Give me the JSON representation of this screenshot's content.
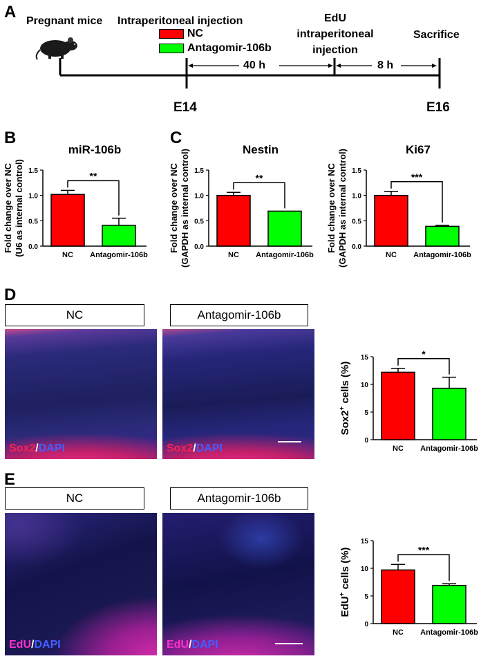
{
  "panels": {
    "A": "A",
    "B": "B",
    "C": "C",
    "D": "D",
    "E": "E"
  },
  "timeline": {
    "pregnant": "Pregnant mice",
    "injection": "Intraperitoneal injection",
    "legend_nc": "NC",
    "legend_anta": "Antagomir-106b",
    "edu_line1": "EdU",
    "edu_line2": "intraperitoneal",
    "edu_line3": "injection",
    "sacrifice": "Sacrifice",
    "interval1": "40 h",
    "interval2": "8 h",
    "day1": "E14",
    "day2": "E16",
    "colors": {
      "nc": "#ff0000",
      "anta": "#00ff00"
    }
  },
  "images": {
    "d_nc_label": "NC",
    "d_anta_label": "Antagomir-106b",
    "e_nc_label": "NC",
    "e_anta_label": "Antagomir-106b",
    "d_stain_a": "Sox2",
    "d_stain_b": "DAPI",
    "e_stain_a": "EdU",
    "e_stain_b": "DAPI",
    "slash": "/"
  },
  "chart_data": [
    {
      "id": "mir106b",
      "type": "bar",
      "title": "miR-106b",
      "ylabel_line1": "Fold change over NC",
      "ylabel_line2": "(U6 as internal control)",
      "categories": [
        "NC",
        "Antagomir-106b"
      ],
      "values": [
        1.02,
        0.41
      ],
      "errors": [
        0.08,
        0.14
      ],
      "ylim": [
        0,
        1.5
      ],
      "yticks": [
        "0.0",
        "0.5",
        "1.0",
        "1.5"
      ],
      "significance": "**"
    },
    {
      "id": "nestin",
      "type": "bar",
      "title": "Nestin",
      "ylabel_line1": "Fold change over NC",
      "ylabel_line2": "(GAPDH as internal control)",
      "categories": [
        "NC",
        "Antagomir-106b"
      ],
      "values": [
        1.0,
        0.69
      ],
      "errors": [
        0.06,
        0.0
      ],
      "ylim": [
        0,
        1.5
      ],
      "yticks": [
        "0.0",
        "0.5",
        "1.0",
        "1.5"
      ],
      "significance": "**"
    },
    {
      "id": "ki67",
      "type": "bar",
      "title": "Ki67",
      "ylabel_line1": "Fold change over NC",
      "ylabel_line2": "(GAPDH as internal control)",
      "categories": [
        "NC",
        "Antagomir-106b"
      ],
      "values": [
        1.0,
        0.39
      ],
      "errors": [
        0.08,
        0.02
      ],
      "ylim": [
        0,
        1.5
      ],
      "yticks": [
        "0.0",
        "0.5",
        "1.0",
        "1.5"
      ],
      "significance": "***"
    },
    {
      "id": "sox2",
      "type": "bar",
      "title": "",
      "ylabel_line1": "Sox2",
      "ylabel_sup": "+",
      "ylabel_rest": " cells (%)",
      "categories": [
        "NC",
        "Antagomir-106b"
      ],
      "values": [
        12.2,
        9.3
      ],
      "errors": [
        0.7,
        2.0
      ],
      "ylim": [
        0,
        15
      ],
      "yticks": [
        "0",
        "5",
        "10",
        "15"
      ],
      "significance": "*"
    },
    {
      "id": "edu",
      "type": "bar",
      "title": "",
      "ylabel_line1": "EdU",
      "ylabel_sup": "+",
      "ylabel_rest": " cells (%)",
      "categories": [
        "NC",
        "Antagomir-106b"
      ],
      "values": [
        9.7,
        6.9
      ],
      "errors": [
        1.0,
        0.3
      ],
      "ylim": [
        0,
        15
      ],
      "yticks": [
        "0",
        "5",
        "10",
        "15"
      ],
      "significance": "***"
    }
  ]
}
